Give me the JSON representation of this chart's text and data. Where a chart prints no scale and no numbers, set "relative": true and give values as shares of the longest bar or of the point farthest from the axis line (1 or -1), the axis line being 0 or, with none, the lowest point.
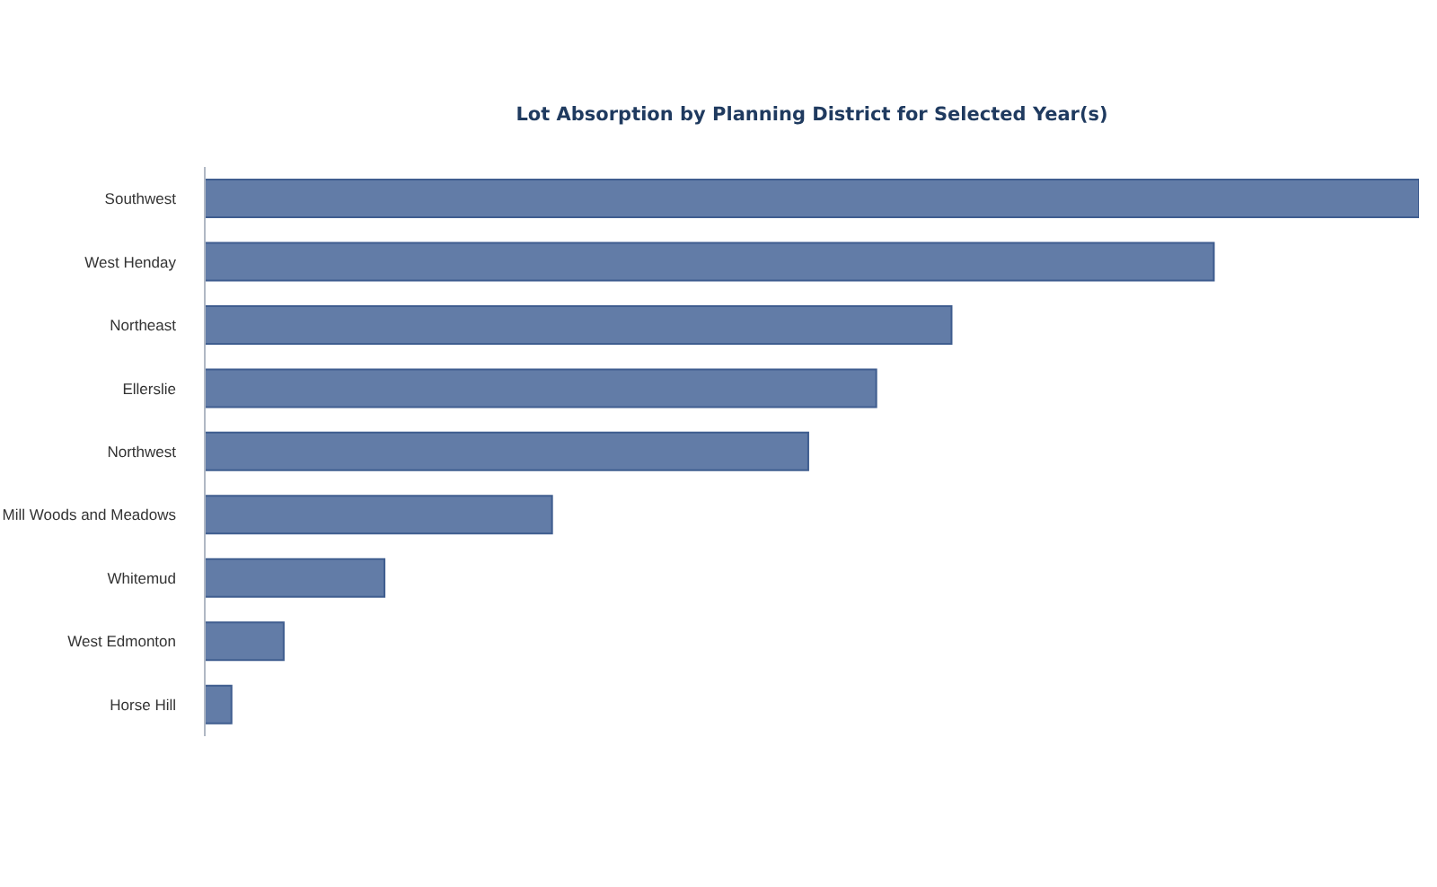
{
  "chart_data": {
    "type": "bar",
    "orientation": "horizontal",
    "relative": true,
    "title": "Lot Absorption by Planning District for Selected Year(s)",
    "categories": [
      "Southwest",
      "West Henday",
      "Northeast",
      "Ellerslie",
      "Northwest",
      "Mill Woods and Meadows",
      "Whitemud",
      "West Edmonton",
      "Horse Hill"
    ],
    "values": [
      1,
      0.831,
      0.615,
      0.553,
      0.497,
      0.286,
      0.148,
      0.065,
      0.022
    ],
    "color": "#627ca7",
    "grid": false,
    "legend": false
  }
}
